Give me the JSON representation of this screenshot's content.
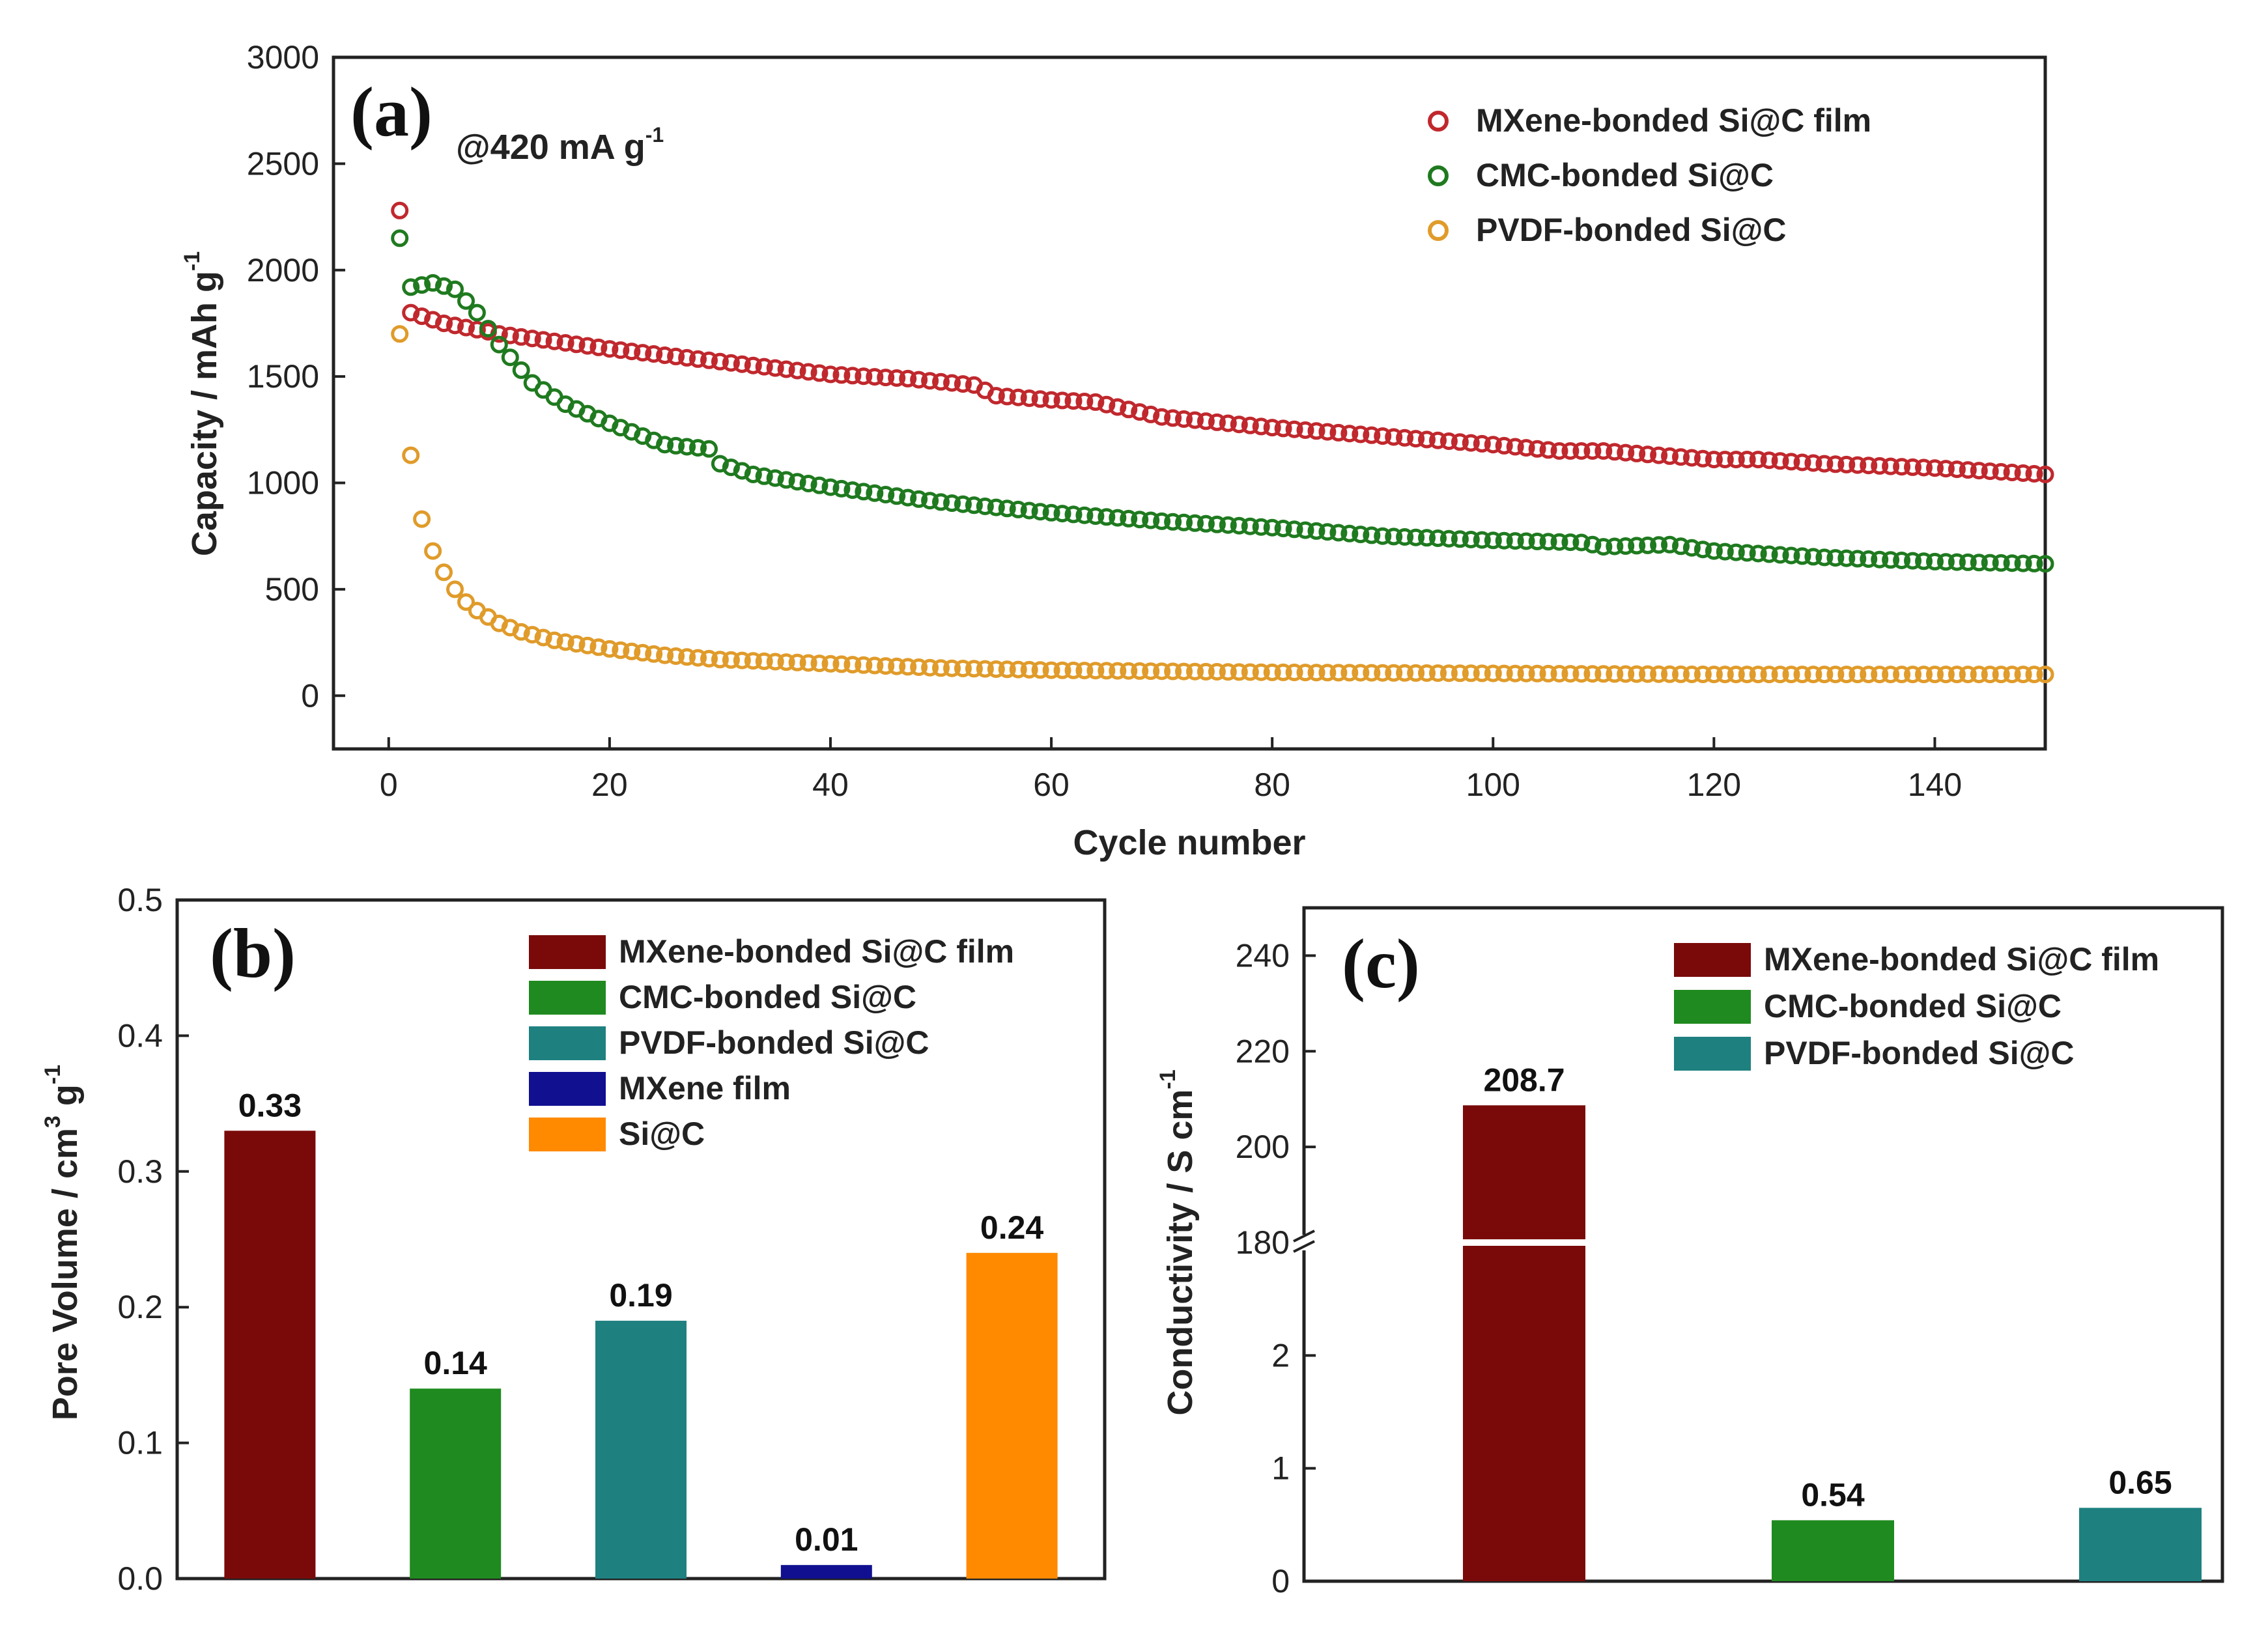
{
  "colors": {
    "mxene_line": "#c0282d",
    "cmc_line": "#1f7a1f",
    "pvdf_line": "#e09b2a",
    "mxene_bar": "#7a0a0a",
    "cmc_bar": "#1f8a1f",
    "pvdf_bar": "#1f8080",
    "mxene_film_bar": "#101090",
    "sic_bar": "#ff8a00"
  },
  "chart_data": [
    {
      "id": "a",
      "type": "scatter",
      "panel_label": "(a)",
      "annotation": "@420 mA g",
      "annotation_sup": "-1",
      "xlabel": "Cycle number",
      "ylabel": "Capacity / mAh g",
      "ylabel_sup": "-1",
      "xlim": [
        -5,
        150
      ],
      "ylim": [
        -250,
        3000
      ],
      "xticks": [
        0,
        20,
        40,
        60,
        80,
        100,
        120,
        140
      ],
      "yticks": [
        0,
        500,
        1000,
        1500,
        2000,
        2500,
        3000
      ],
      "series": [
        {
          "name": "MXene-bonded Si@C film",
          "color": "#c0282d",
          "x": [
            1,
            2,
            5,
            10,
            20,
            30,
            40,
            47,
            53,
            55,
            60,
            64,
            70,
            80,
            90,
            100,
            106,
            110,
            120,
            124,
            130,
            140,
            150
          ],
          "y": [
            2280,
            1800,
            1750,
            1700,
            1630,
            1570,
            1510,
            1490,
            1460,
            1410,
            1390,
            1380,
            1310,
            1260,
            1220,
            1180,
            1150,
            1150,
            1110,
            1110,
            1090,
            1070,
            1040
          ]
        },
        {
          "name": "CMC-bonded Si@C",
          "color": "#1f7a1f",
          "x": [
            1,
            2,
            4,
            6,
            8,
            10,
            13,
            16,
            20,
            25,
            29,
            30,
            33,
            40,
            50,
            60,
            70,
            80,
            90,
            100,
            108,
            110,
            116,
            120,
            130,
            140,
            150
          ],
          "y": [
            2150,
            1920,
            1940,
            1910,
            1800,
            1650,
            1470,
            1370,
            1280,
            1180,
            1160,
            1090,
            1040,
            980,
            910,
            860,
            820,
            790,
            750,
            730,
            720,
            700,
            710,
            680,
            650,
            630,
            620
          ]
        },
        {
          "name": "PVDF-bonded Si@C",
          "color": "#e09b2a",
          "x": [
            1,
            2,
            3,
            4,
            5,
            6,
            7,
            8,
            9,
            10,
            12,
            15,
            20,
            25,
            30,
            40,
            50,
            60,
            80,
            100,
            120,
            150
          ],
          "y": [
            1700,
            1130,
            830,
            680,
            580,
            500,
            440,
            400,
            370,
            340,
            300,
            260,
            220,
            190,
            170,
            150,
            130,
            120,
            110,
            105,
            100,
            100
          ]
        }
      ]
    },
    {
      "id": "b",
      "type": "bar",
      "panel_label": "(b)",
      "ylabel": "Pore Volume / cm",
      "ylabel_sup1": "3",
      "ylabel_mid": " g",
      "ylabel_sup2": "-1",
      "ylim": [
        0,
        0.5
      ],
      "yticks": [
        "0.0",
        "0.1",
        "0.2",
        "0.3",
        "0.4",
        "0.5"
      ],
      "categories": [
        "MXene-bonded Si@C film",
        "CMC-bonded Si@C",
        "PVDF-bonded Si@C",
        "MXene film",
        "Si@C"
      ],
      "values": [
        0.33,
        0.14,
        0.19,
        0.01,
        0.24
      ],
      "labels": [
        "0.33",
        "0.14",
        "0.19",
        "0.01",
        "0.24"
      ],
      "colors": [
        "#7a0a0a",
        "#1f8a1f",
        "#1f8080",
        "#101090",
        "#ff8a00"
      ]
    },
    {
      "id": "c",
      "type": "bar",
      "panel_label": "(c)",
      "ylabel": "Conductivity / S cm",
      "ylabel_sup": "-1",
      "axis_break": {
        "lower": [
          0,
          3
        ],
        "upper": [
          180,
          250
        ]
      },
      "yticks_lower": [
        "0",
        "1",
        "2"
      ],
      "yticks_upper": [
        "180",
        "200",
        "220",
        "240"
      ],
      "categories": [
        "MXene-bonded Si@C film",
        "CMC-bonded Si@C",
        "PVDF-bonded Si@C"
      ],
      "values": [
        208.7,
        0.54,
        0.65
      ],
      "labels": [
        "208.7",
        "0.54",
        "0.65"
      ],
      "colors": [
        "#7a0a0a",
        "#1f8a1f",
        "#1f8080"
      ]
    }
  ]
}
